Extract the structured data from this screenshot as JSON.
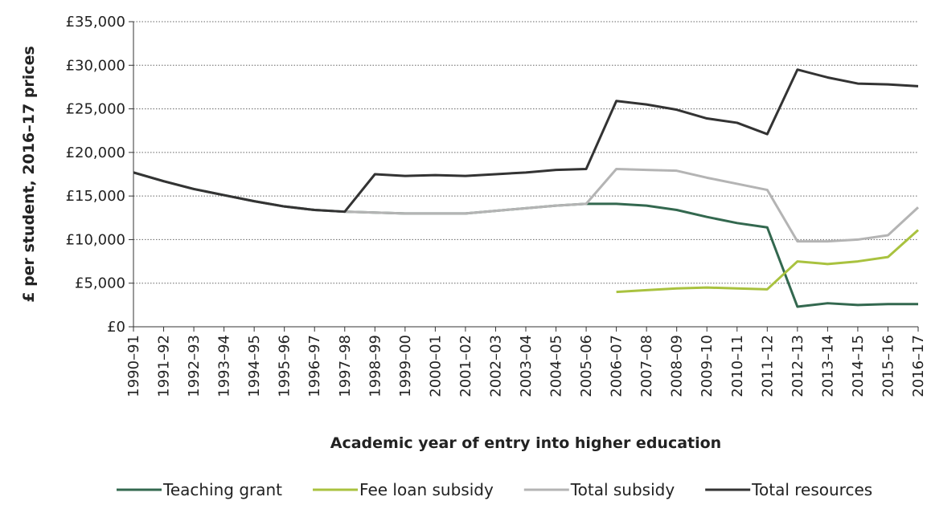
{
  "chart_data": {
    "type": "line",
    "y_label": "£ per student, 2016–17 prices",
    "x_label": "Academic year of entry into higher education",
    "categories": [
      "1990–91",
      "1991–92",
      "1992–93",
      "1993–94",
      "1994–95",
      "1995–96",
      "1996–97",
      "1997–98",
      "1998–99",
      "1999–00",
      "2000–01",
      "2001–02",
      "2002–03",
      "2003–04",
      "2004–05",
      "2005–06",
      "2006–07",
      "2007–08",
      "2008–09",
      "2009–10",
      "2010–11",
      "2011–12",
      "2012–13",
      "2013–14",
      "2014–15",
      "2015–16",
      "2016–17"
    ],
    "series": [
      {
        "name": "Teaching grant",
        "color": "#33684f",
        "values": [
          17700,
          16700,
          15800,
          15100,
          14400,
          13800,
          13400,
          13200,
          13100,
          13000,
          13000,
          13000,
          13300,
          13600,
          13900,
          14100,
          14100,
          13900,
          13400,
          12600,
          11900,
          11400,
          2300,
          2700,
          2500,
          2600,
          2600
        ]
      },
      {
        "name": "Fee loan subsidy",
        "color": "#a9c23f",
        "values": [
          null,
          null,
          null,
          null,
          null,
          null,
          null,
          null,
          null,
          null,
          null,
          null,
          null,
          null,
          null,
          null,
          4000,
          4200,
          4400,
          4500,
          4400,
          4300,
          7500,
          7200,
          7500,
          8000,
          11100
        ]
      },
      {
        "name": "Total subsidy",
        "color": "#b4b4b4",
        "values": [
          17700,
          16700,
          15800,
          15100,
          14400,
          13800,
          13400,
          13200,
          13100,
          13000,
          13000,
          13000,
          13300,
          13600,
          13900,
          14100,
          18100,
          18000,
          17900,
          17100,
          16400,
          15700,
          9800,
          9800,
          10000,
          10500,
          13700
        ]
      },
      {
        "name": "Total resources",
        "color": "#333333",
        "values": [
          17700,
          16700,
          15800,
          15100,
          14400,
          13800,
          13400,
          13200,
          17500,
          17300,
          17400,
          17300,
          17500,
          17700,
          18000,
          18100,
          25900,
          25500,
          24900,
          23900,
          23400,
          22100,
          29500,
          28600,
          27900,
          27800,
          27600
        ]
      }
    ],
    "ylim": [
      0,
      35000
    ],
    "yticks": [
      {
        "value": 0,
        "label": "£0"
      },
      {
        "value": 5000,
        "label": "£5,000"
      },
      {
        "value": 10000,
        "label": "£10,000"
      },
      {
        "value": 15000,
        "label": "£15,000"
      },
      {
        "value": 20000,
        "label": "£20,000"
      },
      {
        "value": 25000,
        "label": "£25,000"
      },
      {
        "value": 30000,
        "label": "£30,000"
      },
      {
        "value": 35000,
        "label": "£35,000"
      }
    ],
    "grid": true,
    "legend": "bottom"
  }
}
